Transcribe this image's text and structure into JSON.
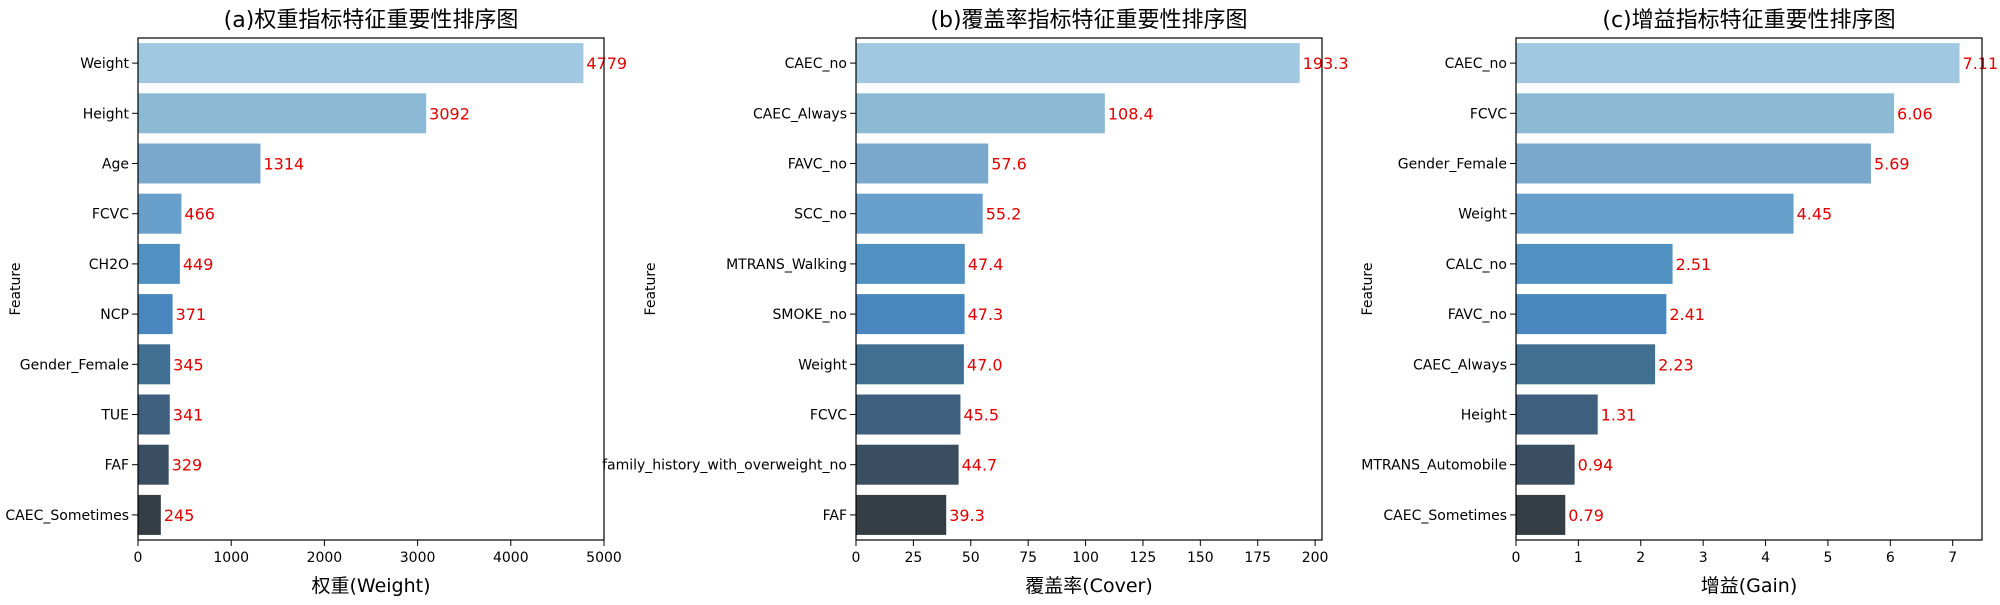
{
  "chart_data": [
    {
      "type": "bar",
      "orientation": "horizontal",
      "title": "(a)权重指标特征重要性排序图",
      "xlabel": "权重(Weight)",
      "ylabel": "Feature",
      "xlim": [
        0,
        5000
      ],
      "xticks": [
        0,
        1000,
        2000,
        3000,
        4000,
        5000
      ],
      "categories": [
        "Weight",
        "Height",
        "Age",
        "FCVC",
        "CH2O",
        "NCP",
        "Gender_Female",
        "TUE",
        "FAF",
        "CAEC_Sometimes"
      ],
      "values": [
        4779,
        3092,
        1314,
        466,
        449,
        371,
        345,
        341,
        329,
        245
      ],
      "value_labels": [
        "4779",
        "3092",
        "1314",
        "466",
        "449",
        "371",
        "345",
        "341",
        "329",
        "245"
      ],
      "grid": false
    },
    {
      "type": "bar",
      "orientation": "horizontal",
      "title": "(b)覆盖率指标特征重要性排序图",
      "xlabel": "覆盖率(Cover)",
      "ylabel": "Feature",
      "xlim": [
        0,
        203
      ],
      "xticks": [
        0,
        25,
        50,
        75,
        100,
        125,
        150,
        175,
        200
      ],
      "categories": [
        "CAEC_no",
        "CAEC_Always",
        "FAVC_no",
        "SCC_no",
        "MTRANS_Walking",
        "SMOKE_no",
        "Weight",
        "FCVC",
        "family_history_with_overweight_no",
        "FAF"
      ],
      "values": [
        193.3,
        108.4,
        57.6,
        55.2,
        47.4,
        47.3,
        47.0,
        45.5,
        44.7,
        39.3
      ],
      "value_labels": [
        "193.3",
        "108.4",
        "57.6",
        "55.2",
        "47.4",
        "47.3",
        "47.0",
        "45.5",
        "44.7",
        "39.3"
      ],
      "grid": false
    },
    {
      "type": "bar",
      "orientation": "horizontal",
      "title": "(c)增益指标特征重要性排序图",
      "xlabel": "增益(Gain)",
      "ylabel": "Feature",
      "xlim": [
        0,
        7.47
      ],
      "xticks": [
        0,
        1,
        2,
        3,
        4,
        5,
        6,
        7
      ],
      "categories": [
        "CAEC_no",
        "FCVC",
        "Gender_Female",
        "Weight",
        "CALC_no",
        "FAVC_no",
        "CAEC_Always",
        "Height",
        "MTRANS_Automobile",
        "CAEC_Sometimes"
      ],
      "values": [
        7.11,
        6.06,
        5.69,
        4.45,
        2.51,
        2.41,
        2.23,
        1.31,
        0.94,
        0.79
      ],
      "value_labels": [
        "7.11",
        "6.06",
        "5.69",
        "4.45",
        "2.51",
        "2.41",
        "2.23",
        "1.31",
        "0.94",
        "0.79"
      ],
      "grid": false
    }
  ],
  "colors": {
    "bar_palette": [
      "#a0c8e0",
      "#8cb9d4",
      "#7aa8cd",
      "#68a0cb",
      "#5191c2",
      "#4986bd",
      "#416f92",
      "#3f5f7e",
      "#3a4e61",
      "#353e45"
    ],
    "value_label": "#e00000",
    "axis": "#000000"
  }
}
